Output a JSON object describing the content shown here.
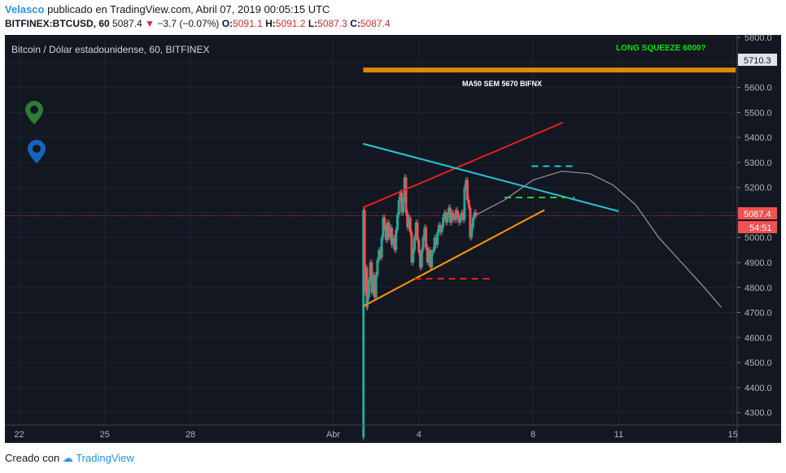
{
  "header": {
    "author": "Velasco",
    "published_text": "publicado en TradingView.com, Abril 07, 2019 00:05:15 UTC",
    "symbol": "BITFINEX:BTCUSD, 60",
    "last": "5087.4",
    "change": "−3.7 (−0.07%)",
    "o_label": "O:",
    "o_value": "5091.1",
    "h_label": "H:",
    "h_value": "5091.2",
    "l_label": "L:",
    "l_value": "5087.3",
    "c_label": "C:",
    "c_value": "5087.4"
  },
  "chart": {
    "pane_title": "Bitcoin / Dólar estadounidense, 60, BITFINEX",
    "annotation_long_squeeze": "LONG SQUEEZE 6000?",
    "annotation_ma50": "MA50 SEM 5670 BIFNX",
    "price_badge_top": "5710.3",
    "price_badge_current": "5087.4",
    "countdown_badge": "54:51"
  },
  "chart_data": {
    "type": "candlestick",
    "y_ticks": [
      5800,
      5700,
      5600,
      5500,
      5400,
      5300,
      5200,
      5100,
      5000,
      4900,
      4800,
      4700,
      4600,
      4500,
      4400,
      4300
    ],
    "y_tick_labels": [
      "5800.0",
      "5700.0",
      "5600.0",
      "5500.0",
      "5400.0",
      "5300.0",
      "5200.0",
      "5100.0",
      "5000.0",
      "4900.0",
      "4800.0",
      "4700.0",
      "4600.0",
      "4500.0",
      "4400.0",
      "4300.0"
    ],
    "ylim": [
      4250,
      5810
    ],
    "x_ticks": [
      {
        "label": "22",
        "day": -10
      },
      {
        "label": "25",
        "day": -7
      },
      {
        "label": "28",
        "day": -4
      },
      {
        "label": "Abr",
        "day": 1
      },
      {
        "label": "4",
        "day": 4
      },
      {
        "label": "8",
        "day": 8
      },
      {
        "label": "11",
        "day": 11
      },
      {
        "label": "15",
        "day": 15
      }
    ],
    "xlim": [
      -10.5,
      15.15
    ],
    "current_price": 5087.4,
    "top_price_marker": 5710.3,
    "series": [
      {
        "name": "BTCUSD",
        "points": [
          [
            2.05,
            4200
          ],
          [
            2.06,
            5110
          ],
          [
            2.1,
            4780
          ],
          [
            2.14,
            4880
          ],
          [
            2.18,
            4720
          ],
          [
            2.2,
            4760
          ],
          [
            2.25,
            4830
          ],
          [
            2.3,
            4900
          ],
          [
            2.35,
            4780
          ],
          [
            2.4,
            4850
          ],
          [
            2.45,
            4760
          ],
          [
            2.5,
            4850
          ],
          [
            2.55,
            4910
          ],
          [
            2.6,
            4950
          ],
          [
            2.65,
            4920
          ],
          [
            2.7,
            5000
          ],
          [
            2.75,
            5080
          ],
          [
            2.8,
            5040
          ],
          [
            2.85,
            4990
          ],
          [
            2.9,
            5060
          ],
          [
            2.95,
            5000
          ],
          [
            3.0,
            5040
          ],
          [
            3.05,
            4970
          ],
          [
            3.1,
            5000
          ],
          [
            3.15,
            4950
          ],
          [
            3.2,
            5030
          ],
          [
            3.25,
            5090
          ],
          [
            3.3,
            5150
          ],
          [
            3.35,
            5180
          ],
          [
            3.4,
            5100
          ],
          [
            3.45,
            5150
          ],
          [
            3.5,
            5240
          ],
          [
            3.55,
            5100
          ],
          [
            3.6,
            5040
          ],
          [
            3.65,
            5080
          ],
          [
            3.7,
            5020
          ],
          [
            3.75,
            4900
          ],
          [
            3.8,
            4950
          ],
          [
            3.85,
            5000
          ],
          [
            3.9,
            5060
          ],
          [
            3.95,
            4990
          ],
          [
            4.0,
            4940
          ],
          [
            4.05,
            4880
          ],
          [
            4.1,
            4950
          ],
          [
            4.15,
            5000
          ],
          [
            4.2,
            5040
          ],
          [
            4.25,
            4960
          ],
          [
            4.3,
            4900
          ],
          [
            4.35,
            4950
          ],
          [
            4.4,
            4880
          ],
          [
            4.45,
            4940
          ],
          [
            4.5,
            4950
          ],
          [
            4.55,
            5000
          ],
          [
            4.6,
            4970
          ],
          [
            4.65,
            5020
          ],
          [
            4.7,
            5050
          ],
          [
            4.75,
            5020
          ],
          [
            4.8,
            5040
          ],
          [
            4.85,
            5080
          ],
          [
            4.9,
            5100
          ],
          [
            4.95,
            5060
          ],
          [
            5.0,
            5090
          ],
          [
            5.05,
            5120
          ],
          [
            5.1,
            5060
          ],
          [
            5.15,
            5100
          ],
          [
            5.2,
            5080
          ],
          [
            5.25,
            5070
          ],
          [
            5.3,
            5110
          ],
          [
            5.35,
            5090
          ],
          [
            5.4,
            5060
          ],
          [
            5.45,
            5080
          ],
          [
            5.5,
            5100
          ],
          [
            5.55,
            5070
          ],
          [
            5.6,
            5200
          ],
          [
            5.65,
            5230
          ],
          [
            5.7,
            5150
          ],
          [
            5.75,
            5120
          ],
          [
            5.8,
            5000
          ],
          [
            5.85,
            5040
          ],
          [
            5.9,
            5080
          ],
          [
            5.95,
            5100
          ],
          [
            6.0,
            5087.4
          ]
        ]
      }
    ],
    "drawings": {
      "resistance_red": [
        [
          2.05,
          5120
        ],
        [
          9.05,
          5460
        ]
      ],
      "triangle_cyan": [
        [
          2.05,
          5375
        ],
        [
          11.0,
          5105
        ]
      ],
      "support_orange": [
        [
          2.05,
          4725
        ],
        [
          8.4,
          5110
        ]
      ],
      "horizontal_orange": {
        "from": 2.05,
        "to": 15.1,
        "value": 5670
      },
      "dashed_cyan": {
        "from": 7.95,
        "to": 9.45,
        "value": 5285
      },
      "dashed_green": {
        "from": 7.0,
        "to": 9.45,
        "value": 5160
      },
      "dashed_red": {
        "from": 3.85,
        "to": 6.55,
        "value": 4835
      },
      "projection_grey": [
        [
          6.0,
          5090
        ],
        [
          7.0,
          5150
        ],
        [
          8.0,
          5230
        ],
        [
          9.0,
          5265
        ],
        [
          10.0,
          5255
        ],
        [
          10.8,
          5210
        ],
        [
          11.6,
          5130
        ],
        [
          12.4,
          5000
        ],
        [
          13.2,
          4900
        ],
        [
          14.0,
          4800
        ],
        [
          14.6,
          4720
        ]
      ]
    }
  }
}
